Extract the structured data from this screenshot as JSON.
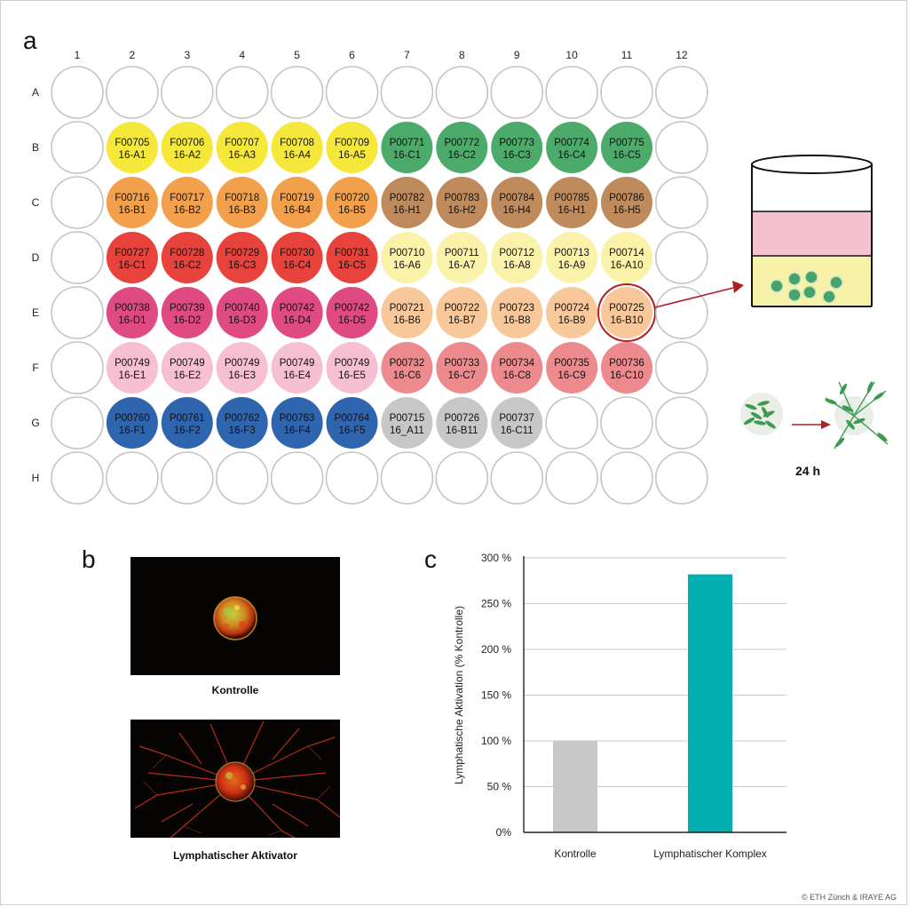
{
  "panels": {
    "a": "a",
    "b": "b",
    "c": "c"
  },
  "plate": {
    "columns": [
      "1",
      "2",
      "3",
      "4",
      "5",
      "6",
      "7",
      "8",
      "9",
      "10",
      "11",
      "12"
    ],
    "rows": [
      "A",
      "B",
      "C",
      "D",
      "E",
      "F",
      "G",
      "H"
    ],
    "highlight_well": "E11",
    "wells": [
      {
        "well": "B2",
        "l1": "F00705",
        "l2": "16-A1",
        "color": "#f6e83a"
      },
      {
        "well": "B3",
        "l1": "F00706",
        "l2": "16-A2",
        "color": "#f6e83a"
      },
      {
        "well": "B4",
        "l1": "F00707",
        "l2": "16-A3",
        "color": "#f6e83a"
      },
      {
        "well": "B5",
        "l1": "F00708",
        "l2": "16-A4",
        "color": "#f6e83a"
      },
      {
        "well": "B6",
        "l1": "F00709",
        "l2": "16-A5",
        "color": "#f6e83a"
      },
      {
        "well": "B7",
        "l1": "P00771",
        "l2": "16-C1",
        "color": "#4caa6a"
      },
      {
        "well": "B8",
        "l1": "P00772",
        "l2": "16-C2",
        "color": "#4caa6a"
      },
      {
        "well": "B9",
        "l1": "P00773",
        "l2": "16-C3",
        "color": "#4caa6a"
      },
      {
        "well": "B10",
        "l1": "P00774",
        "l2": "16-C4",
        "color": "#4caa6a"
      },
      {
        "well": "B11",
        "l1": "P00775",
        "l2": "16-C5",
        "color": "#4caa6a"
      },
      {
        "well": "C2",
        "l1": "F00716",
        "l2": "16-B1",
        "color": "#f2a04c"
      },
      {
        "well": "C3",
        "l1": "F00717",
        "l2": "16-B2",
        "color": "#f2a04c"
      },
      {
        "well": "C4",
        "l1": "F00718",
        "l2": "16-B3",
        "color": "#f2a04c"
      },
      {
        "well": "C5",
        "l1": "F00719",
        "l2": "16-B4",
        "color": "#f2a04c"
      },
      {
        "well": "C6",
        "l1": "F00720",
        "l2": "16-B5",
        "color": "#f2a04c"
      },
      {
        "well": "C7",
        "l1": "P00782",
        "l2": "16-H1",
        "color": "#bf8b5c"
      },
      {
        "well": "C8",
        "l1": "P00783",
        "l2": "16-H2",
        "color": "#bf8b5c"
      },
      {
        "well": "C9",
        "l1": "P00784",
        "l2": "16-H4",
        "color": "#bf8b5c"
      },
      {
        "well": "C10",
        "l1": "P00785",
        "l2": "16-H1",
        "color": "#bf8b5c"
      },
      {
        "well": "C11",
        "l1": "P00786",
        "l2": "16-H5",
        "color": "#bf8b5c"
      },
      {
        "well": "D2",
        "l1": "F00727",
        "l2": "16-C1",
        "color": "#e8423c"
      },
      {
        "well": "D3",
        "l1": "F00728",
        "l2": "16-C2",
        "color": "#e8423c"
      },
      {
        "well": "D4",
        "l1": "F00729",
        "l2": "16-C3",
        "color": "#e8423c"
      },
      {
        "well": "D5",
        "l1": "F00730",
        "l2": "16-C4",
        "color": "#e8423c"
      },
      {
        "well": "D6",
        "l1": "F00731",
        "l2": "16-C5",
        "color": "#e8423c"
      },
      {
        "well": "D7",
        "l1": "P00710",
        "l2": "16-A6",
        "color": "#fbf2aa"
      },
      {
        "well": "D8",
        "l1": "P00711",
        "l2": "16-A7",
        "color": "#fbf2aa"
      },
      {
        "well": "D9",
        "l1": "P00712",
        "l2": "16-A8",
        "color": "#fbf2aa"
      },
      {
        "well": "D10",
        "l1": "P00713",
        "l2": "16-A9",
        "color": "#fbf2aa"
      },
      {
        "well": "D11",
        "l1": "P00714",
        "l2": "16-A10",
        "color": "#fbf2aa"
      },
      {
        "well": "E2",
        "l1": "P00738",
        "l2": "16-D1",
        "color": "#df4a82"
      },
      {
        "well": "E3",
        "l1": "P00739",
        "l2": "16-D2",
        "color": "#df4a82"
      },
      {
        "well": "E4",
        "l1": "P00740",
        "l2": "16-D3",
        "color": "#df4a82"
      },
      {
        "well": "E5",
        "l1": "P00742",
        "l2": "16-D4",
        "color": "#df4a82"
      },
      {
        "well": "E6",
        "l1": "P00742",
        "l2": "16-D5",
        "color": "#df4a82"
      },
      {
        "well": "E7",
        "l1": "P00721",
        "l2": "16-B6",
        "color": "#f8c89a"
      },
      {
        "well": "E8",
        "l1": "P00722",
        "l2": "16-B7",
        "color": "#f8c89a"
      },
      {
        "well": "E9",
        "l1": "P00723",
        "l2": "16-B8",
        "color": "#f8c89a"
      },
      {
        "well": "E10",
        "l1": "P00724",
        "l2": "16-B9",
        "color": "#f8c89a"
      },
      {
        "well": "E11",
        "l1": "P00725",
        "l2": "16-B10",
        "color": "#f8c89a"
      },
      {
        "well": "F2",
        "l1": "P00749",
        "l2": "16-E1",
        "color": "#f6bfd2"
      },
      {
        "well": "F3",
        "l1": "P00749",
        "l2": "16-E2",
        "color": "#f6bfd2"
      },
      {
        "well": "F4",
        "l1": "P00749",
        "l2": "16-E3",
        "color": "#f6bfd2"
      },
      {
        "well": "F5",
        "l1": "P00749",
        "l2": "16-E4",
        "color": "#f6bfd2"
      },
      {
        "well": "F6",
        "l1": "P00749",
        "l2": "16-E5",
        "color": "#f6bfd2"
      },
      {
        "well": "F7",
        "l1": "P00732",
        "l2": "16-C6",
        "color": "#ec8a8d"
      },
      {
        "well": "F8",
        "l1": "P00733",
        "l2": "16-C7",
        "color": "#ec8a8d"
      },
      {
        "well": "F9",
        "l1": "P00734",
        "l2": "16-C8",
        "color": "#ec8a8d"
      },
      {
        "well": "F10",
        "l1": "P00735",
        "l2": "16-C9",
        "color": "#ec8a8d"
      },
      {
        "well": "F11",
        "l1": "P00736",
        "l2": "16-C10",
        "color": "#ec8a8d"
      },
      {
        "well": "G2",
        "l1": "P00760",
        "l2": "16-F1",
        "color": "#2f64ae"
      },
      {
        "well": "G3",
        "l1": "P00761",
        "l2": "16-F2",
        "color": "#2f64ae"
      },
      {
        "well": "G4",
        "l1": "P00762",
        "l2": "16-F3",
        "color": "#2f64ae"
      },
      {
        "well": "G5",
        "l1": "P00763",
        "l2": "16-F4",
        "color": "#2f64ae"
      },
      {
        "well": "G6",
        "l1": "P00764",
        "l2": "16-F5",
        "color": "#2f64ae"
      },
      {
        "well": "G7",
        "l1": "P00715",
        "l2": "16_A11",
        "color": "#c7c7c7"
      },
      {
        "well": "G8",
        "l1": "P00726",
        "l2": "16-B11",
        "color": "#c7c7c7"
      },
      {
        "well": "G9",
        "l1": "P00737",
        "l2": "16-C11",
        "color": "#c7c7c7"
      }
    ]
  },
  "time_label": "24 h",
  "micrographs": {
    "control_label": "Kontrolle",
    "activator_label": "Lymphatischer Aktivator"
  },
  "chart_data": {
    "type": "bar",
    "categories": [
      "Kontrolle",
      "Lymphatischer Komplex"
    ],
    "values": [
      100,
      282
    ],
    "colors": [
      "#c7c7c7",
      "#00aeb0"
    ],
    "ylabel": "Lymphatische Aktivation (% Kontrolle)",
    "ylim": [
      0,
      300
    ],
    "yticks": [
      "0%",
      "50 %",
      "100 %",
      "150 %",
      "200 %",
      "250 %",
      "300 %"
    ],
    "grid": true
  },
  "copyright": "© ETH Zürich & IRAYE AG"
}
